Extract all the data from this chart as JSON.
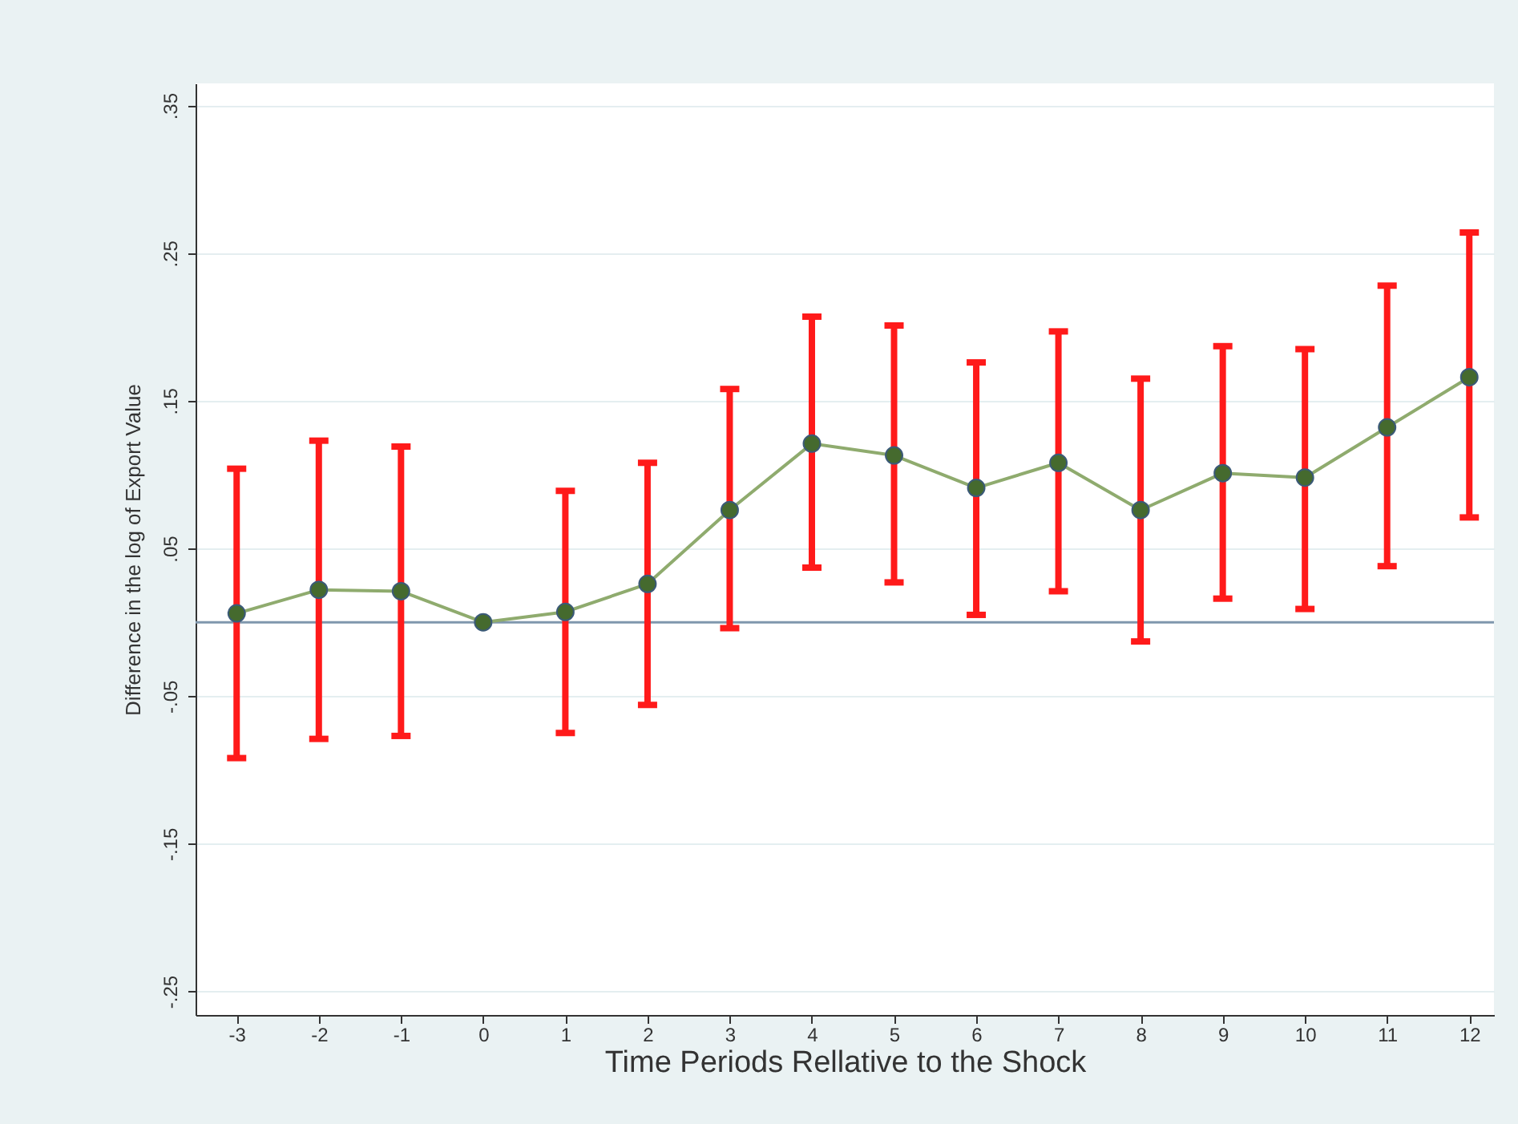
{
  "chart_data": {
    "type": "line",
    "xlabel": "Time Periods Rellative to the Shock",
    "ylabel": "Difference in the log of Export Value",
    "x": [
      -3,
      -2,
      -1,
      0,
      1,
      2,
      3,
      4,
      5,
      6,
      7,
      8,
      9,
      10,
      11,
      12
    ],
    "series": [
      {
        "color": "#8fab6e",
        "values": [
          0.006,
          0.022,
          0.021,
          0,
          0.007,
          0.026,
          0.076,
          0.121,
          0.113,
          0.091,
          0.108,
          0.076,
          0.101,
          0.098,
          0.132,
          0.166
        ],
        "errors": [
          [
            -0.092,
            0.104
          ],
          [
            -0.079,
            0.123
          ],
          [
            -0.077,
            0.119
          ],
          null,
          [
            -0.075,
            0.089
          ],
          [
            -0.056,
            0.108
          ],
          [
            -0.004,
            0.158
          ],
          [
            0.037,
            0.207
          ],
          [
            0.027,
            0.201
          ],
          [
            0.005,
            0.176
          ],
          [
            0.021,
            0.197
          ],
          [
            -0.013,
            0.165
          ],
          [
            0.016,
            0.187
          ],
          [
            0.009,
            0.185
          ],
          [
            0.038,
            0.228
          ],
          [
            0.071,
            0.264
          ]
        ]
      }
    ],
    "xlim": [
      -3.5,
      12.3
    ],
    "ylim": [
      -0.266,
      0.365
    ],
    "xticks": [
      -3,
      -2,
      -1,
      0,
      1,
      2,
      3,
      4,
      5,
      6,
      7,
      8,
      9,
      10,
      11,
      12
    ],
    "yticks": [
      {
        "value": -0.25,
        "label": "-.25"
      },
      {
        "value": -0.15,
        "label": "-.15"
      },
      {
        "value": -0.05,
        "label": "-.05"
      },
      {
        "value": 0.05,
        "label": ".05"
      },
      {
        "value": 0.15,
        "label": ".15"
      },
      {
        "value": 0.25,
        "label": ".25"
      },
      {
        "value": 0.35,
        "label": ".35"
      }
    ],
    "ref_lines": [
      {
        "axis": "y",
        "value": 0,
        "color": "#7f97ad"
      }
    ],
    "grid": "y",
    "marker": "circle",
    "line_style": "solid"
  }
}
